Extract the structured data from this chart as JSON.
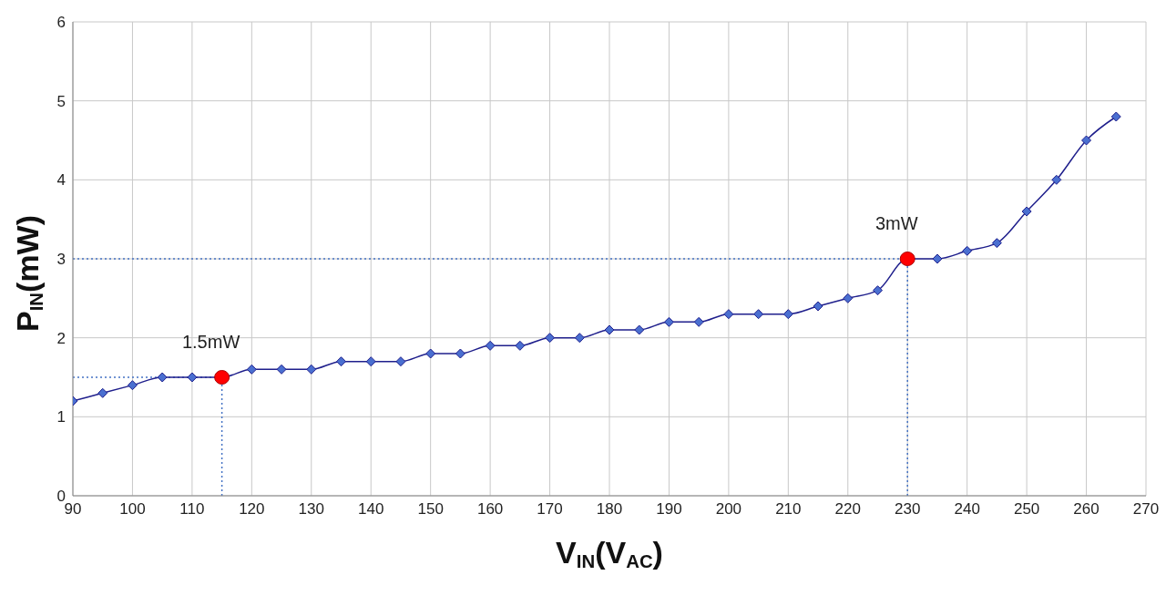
{
  "chart_data": {
    "type": "line",
    "xlabel": "V$_{IN}$(V$_{AC}$)",
    "ylabel": "P$_{IN}$(mW)",
    "xlim": [
      90,
      270
    ],
    "xticks": [
      90,
      100,
      110,
      120,
      130,
      140,
      150,
      160,
      170,
      180,
      190,
      200,
      210,
      220,
      230,
      240,
      250,
      260,
      270
    ],
    "ylim": [
      0,
      6
    ],
    "yticks": [
      0,
      1,
      2,
      3,
      4,
      5,
      6
    ],
    "grid": true,
    "legend": false,
    "marker": "diamond",
    "series": [
      {
        "color": "#1f1f8c",
        "x": [
          90,
          95,
          100,
          105,
          110,
          115,
          120,
          125,
          130,
          135,
          140,
          145,
          150,
          155,
          160,
          165,
          170,
          175,
          180,
          185,
          190,
          195,
          200,
          205,
          210,
          215,
          220,
          225,
          230,
          235,
          240,
          245,
          250,
          255,
          260,
          265
        ],
        "values": [
          1.2,
          1.3,
          1.4,
          1.5,
          1.5,
          1.5,
          1.6,
          1.6,
          1.6,
          1.7,
          1.7,
          1.7,
          1.8,
          1.8,
          1.9,
          1.9,
          2.0,
          2.0,
          2.1,
          2.1,
          2.2,
          2.2,
          2.3,
          2.3,
          2.3,
          2.4,
          2.5,
          2.6,
          3.0,
          3.0,
          3.1,
          3.2,
          3.6,
          4.0,
          4.5,
          4.8
        ]
      },
      {
        "type": "scatter",
        "marker": "circle",
        "color": "#ff0000",
        "x": [
          115,
          230
        ],
        "values": [
          1.5,
          3.0
        ]
      }
    ],
    "ref_lines": [
      {
        "axis": "x",
        "value": 115,
        "color": "#4472c4",
        "line_style": "dotted"
      },
      {
        "axis": "x",
        "value": 230,
        "color": "#4472c4",
        "line_style": "dotted"
      },
      {
        "axis": "y",
        "value": 1.5,
        "color": "#4472c4",
        "line_style": "dotted"
      },
      {
        "axis": "y",
        "value": 3.0,
        "color": "#4472c4",
        "line_style": "dotted"
      }
    ],
    "annotations": [
      {
        "text": "1.5mW",
        "x": 115,
        "y": 1.5
      },
      {
        "text": "3mW",
        "x": 230,
        "y": 3.0
      }
    ]
  }
}
